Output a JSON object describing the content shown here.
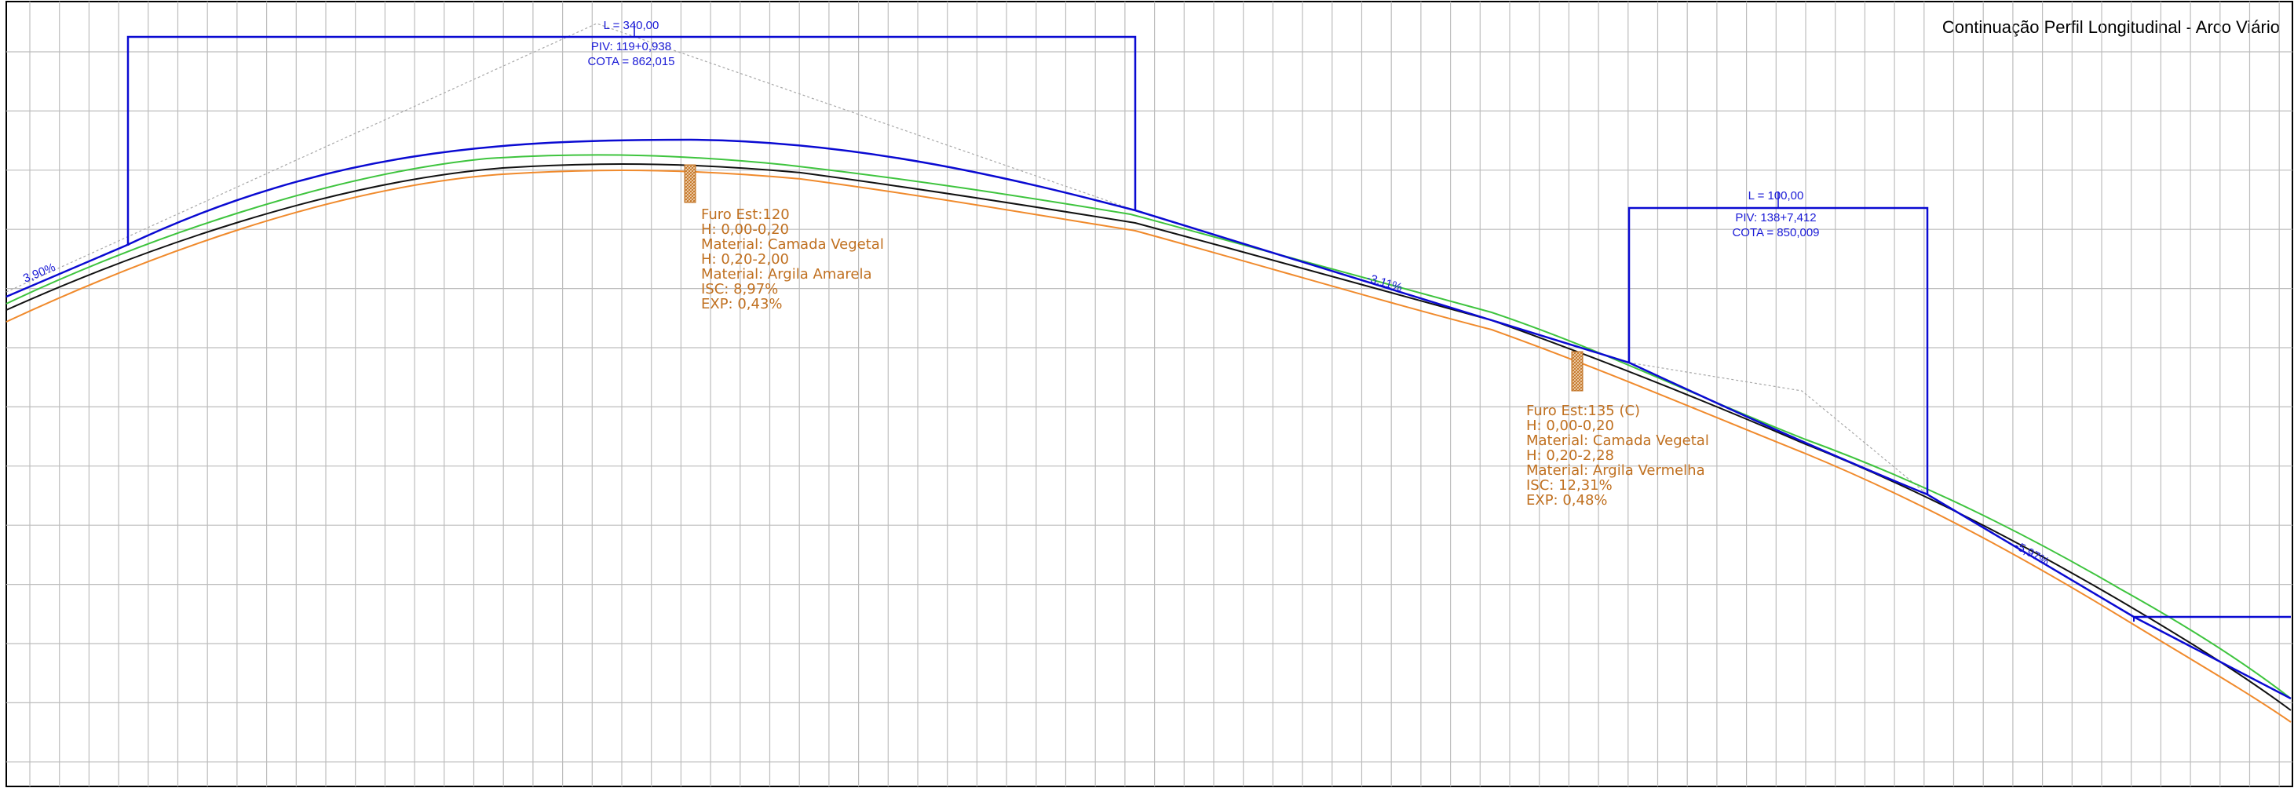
{
  "title": "Continuação Perfil Longitudinal - Arco Viário",
  "colors": {
    "grid": "#bdbdbd",
    "vertical_curve": "#0a0ad2",
    "terrain_black": "#111111",
    "terrain_green": "#3ec43e",
    "terrain_orange": "#f08a2c",
    "tangent_dashed": "#a8a8a8",
    "boring": "#c07020"
  },
  "vertical_curves": [
    {
      "length_label": "L = 340,00",
      "piv_label": "PIV: 119+0,938",
      "cota_label": "COTA = 862,015"
    },
    {
      "length_label": "L = 100,00",
      "piv_label": "PIV: 138+7,412",
      "cota_label": "COTA = 850,009"
    }
  ],
  "grades": [
    {
      "label": "3,90%"
    },
    {
      "label": "-3,11%"
    },
    {
      "label": "-5,97%"
    }
  ],
  "borings": [
    {
      "lines": [
        "Furo Est:120",
        "H: 0,00-0,20",
        "Material: Camada Vegetal",
        "H: 0,20-2,00",
        "Material: Argila Amarela",
        "ISC: 8,97%",
        "EXP: 0,43%"
      ]
    },
    {
      "lines": [
        "Furo Est:135 (C)",
        "H: 0,00-0,20",
        "Material: Camada Vegetal",
        "H: 0,20-2,28",
        "Material: Argila Vermelha",
        "ISC: 12,31%",
        "EXP: 0,48%"
      ]
    }
  ]
}
